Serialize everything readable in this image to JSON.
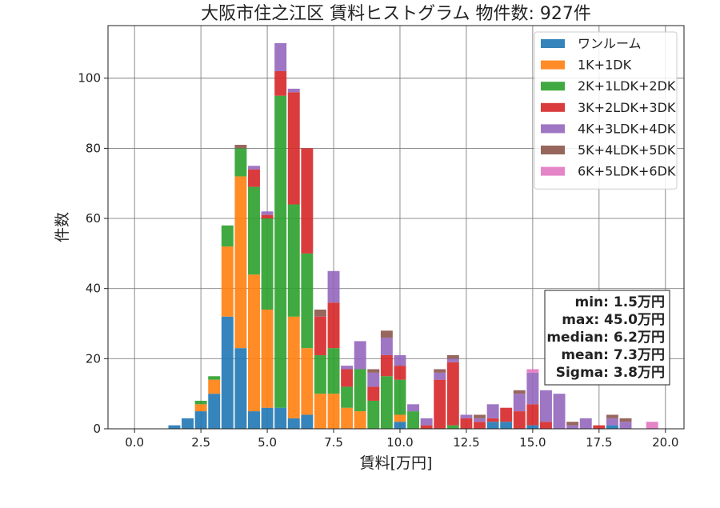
{
  "chart_data": {
    "type": "bar",
    "stacked": true,
    "title": "大阪市住之江区 賃料ヒストグラム  物件数: 927件",
    "xlabel": "賃料[万円]",
    "ylabel": "件数",
    "xlim": [
      -1.0,
      20.7
    ],
    "ylim": [
      0,
      115
    ],
    "grid": true,
    "legend_position": "top-right",
    "xticks": [
      0.0,
      2.5,
      5.0,
      7.5,
      10.0,
      12.5,
      15.0,
      17.5,
      20.0
    ],
    "xtick_labels": [
      "0.0",
      "2.5",
      "5.0",
      "7.5",
      "10.0",
      "12.5",
      "15.0",
      "17.5",
      "20.0"
    ],
    "yticks": [
      0,
      20,
      40,
      60,
      80,
      100
    ],
    "ytick_labels": [
      "0",
      "20",
      "40",
      "60",
      "80",
      "100"
    ],
    "bin_width": 0.5,
    "bins": [
      1.5,
      2.0,
      2.5,
      3.0,
      3.5,
      4.0,
      4.5,
      5.0,
      5.5,
      6.0,
      6.5,
      7.0,
      7.5,
      8.0,
      8.5,
      9.0,
      9.5,
      10.0,
      10.5,
      11.0,
      11.5,
      12.0,
      12.5,
      13.0,
      13.5,
      14.0,
      14.5,
      15.0,
      15.5,
      16.0,
      16.5,
      17.0,
      17.5,
      18.0,
      18.5,
      19.0,
      19.5
    ],
    "series": [
      {
        "name": "ワンルーム",
        "color": "#1f77b4",
        "values": [
          1,
          3,
          5,
          10,
          32,
          23,
          5,
          6,
          6,
          3,
          4,
          0,
          0,
          0,
          0,
          0,
          0,
          2,
          0,
          0,
          0,
          0,
          0,
          0,
          2,
          2,
          0,
          1,
          0,
          0,
          0,
          0,
          0,
          1,
          0,
          0,
          0
        ]
      },
      {
        "name": "1K+1DK",
        "color": "#ff7f0e",
        "values": [
          0,
          0,
          2,
          4,
          20,
          49,
          39,
          28,
          0,
          29,
          19,
          10,
          10,
          6,
          5,
          0,
          0,
          2,
          0,
          0,
          0,
          0,
          0,
          0,
          0,
          0,
          0,
          0,
          0,
          0,
          0,
          0,
          0,
          0,
          0,
          0,
          0
        ]
      },
      {
        "name": "2K+1LDK+2DK",
        "color": "#2ca02c",
        "values": [
          0,
          0,
          1,
          1,
          6,
          8,
          25,
          26,
          89,
          32,
          27,
          11,
          13,
          6,
          12,
          8,
          15,
          10,
          5,
          0,
          0,
          1,
          0,
          0,
          0,
          0,
          0,
          0,
          0,
          0,
          0,
          0,
          0,
          0,
          0,
          0,
          0
        ]
      },
      {
        "name": "3K+2LDK+3DK",
        "color": "#d62728",
        "values": [
          0,
          0,
          0,
          0,
          0,
          0,
          5,
          1,
          7,
          32,
          30,
          11,
          13,
          5,
          0,
          4,
          6,
          4,
          0,
          1,
          14,
          18,
          3,
          2,
          1,
          4,
          5,
          6,
          2,
          0,
          0,
          0,
          1,
          0,
          0,
          0,
          0
        ]
      },
      {
        "name": "4K+3LDK+4DK",
        "color": "#9467bd",
        "values": [
          0,
          0,
          0,
          0,
          0,
          0,
          1,
          1,
          8,
          1,
          0,
          0,
          9,
          1,
          8,
          4,
          5,
          3,
          2,
          2,
          2,
          1,
          1,
          1,
          4,
          0,
          5,
          9,
          9,
          10,
          1,
          3,
          0,
          2,
          2,
          0,
          0
        ]
      },
      {
        "name": "5K+4LDK+5DK",
        "color": "#8c564b",
        "values": [
          0,
          0,
          0,
          0,
          0,
          1,
          0,
          0,
          0,
          0,
          0,
          2,
          0,
          0,
          0,
          1,
          2,
          0,
          0,
          0,
          1,
          1,
          0,
          1,
          0,
          0,
          1,
          0,
          0,
          0,
          1,
          0,
          0,
          1,
          1,
          0,
          0
        ]
      },
      {
        "name": "6K+5LDK+6DK",
        "color": "#e377c2",
        "values": [
          0,
          0,
          0,
          0,
          0,
          0,
          0,
          0,
          0,
          0,
          0,
          0,
          0,
          0,
          0,
          0,
          0,
          0,
          0,
          0,
          0,
          0,
          0,
          0,
          0,
          0,
          0,
          1,
          0,
          0,
          0,
          0,
          0,
          0,
          0,
          0,
          2
        ]
      }
    ],
    "stats": [
      {
        "label": "min: 1.5万円"
      },
      {
        "label": "max: 45.0万円"
      },
      {
        "label": "median: 6.2万円"
      },
      {
        "label": "mean: 7.3万円"
      },
      {
        "label": "Sigma: 3.8万円"
      }
    ]
  }
}
